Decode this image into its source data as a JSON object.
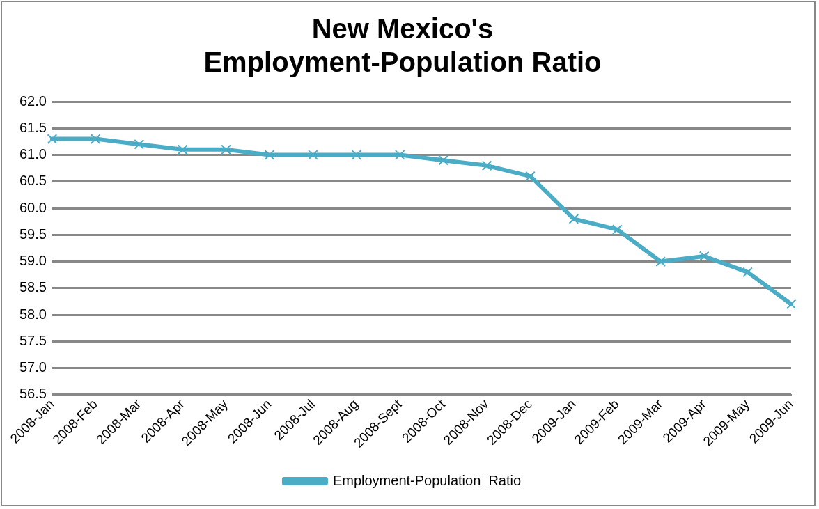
{
  "chart_data": {
    "type": "line",
    "title": "New Mexico's\nEmployment-Population Ratio",
    "categories": [
      "2008-Jan",
      "2008-Feb",
      "2008-Mar",
      "2008-Apr",
      "2008-May",
      "2008-Jun",
      "2008-Jul",
      "2008-Aug",
      "2008-Sept",
      "2008-Oct",
      "2008-Nov",
      "2008-Dec",
      "2009-Jan",
      "2009-Feb",
      "2009-Mar",
      "2009-Apr",
      "2009-May",
      "2009-Jun"
    ],
    "series": [
      {
        "name": "Employment-Population  Ratio",
        "color": "#4bacc6",
        "values": [
          61.3,
          61.3,
          61.2,
          61.1,
          61.1,
          61.0,
          61.0,
          61.0,
          61.0,
          60.9,
          60.8,
          60.6,
          59.8,
          59.6,
          59.0,
          59.1,
          58.8,
          58.2
        ]
      }
    ],
    "ylim": [
      56.5,
      62.0
    ],
    "yticks": [
      {
        "value": 56.5,
        "label": "56.5"
      },
      {
        "value": 57.0,
        "label": "57.0"
      },
      {
        "value": 57.5,
        "label": "57.5"
      },
      {
        "value": 58.0,
        "label": "58.0"
      },
      {
        "value": 58.5,
        "label": "58.5"
      },
      {
        "value": 59.0,
        "label": "59.0"
      },
      {
        "value": 59.5,
        "label": "59.5"
      },
      {
        "value": 60.0,
        "label": "60.0"
      },
      {
        "value": 60.5,
        "label": "60.5"
      },
      {
        "value": 61.0,
        "label": "61.0"
      },
      {
        "value": 61.5,
        "label": "61.5"
      },
      {
        "value": 62.0,
        "label": "62.0"
      }
    ],
    "grid": "y",
    "legend": "bottom",
    "marker": "cross",
    "line_style": "solid"
  }
}
